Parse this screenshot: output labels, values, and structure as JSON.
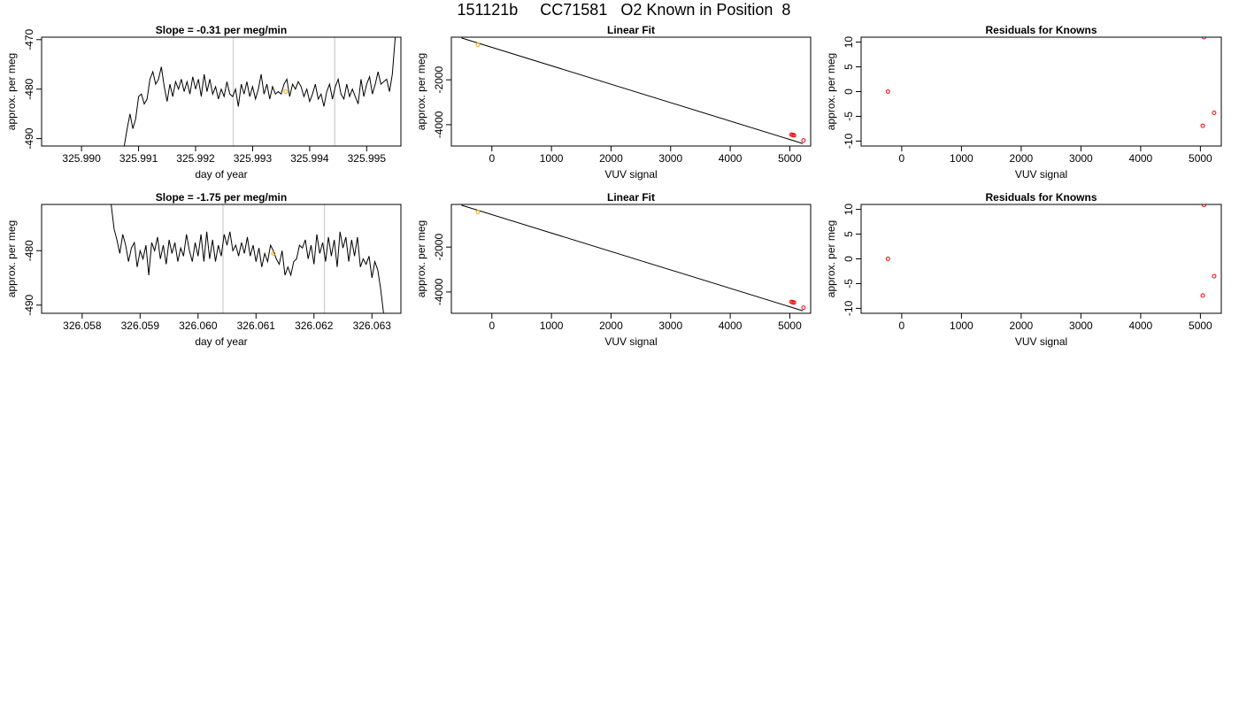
{
  "page": {
    "title": "151121b     CC71581   O2 Known in Position  8"
  },
  "chart_data": [
    {
      "type": "line",
      "title": "Slope =  -0.31  per meg/min",
      "xlabel": "day of year",
      "ylabel": "approx. per meg",
      "xlim": [
        325.9893,
        325.9956
      ],
      "ylim": [
        -491.5,
        -469.5
      ],
      "xticks": [
        "325.990",
        "325.991",
        "325.992",
        "325.993",
        "325.994",
        "325.995"
      ],
      "xtick_values": [
        325.99,
        325.991,
        325.992,
        325.993,
        325.994,
        325.995
      ],
      "yticks": [
        "-490",
        "-480",
        "-470"
      ],
      "ytick_values": [
        -490,
        -480,
        -470
      ],
      "line_color": "#000000",
      "vlines": [
        325.99266,
        325.99444
      ],
      "vline_color": "#cccccc",
      "marker": {
        "x": 325.99358,
        "y": -480.5,
        "color": "#ffa500"
      },
      "x": [
        325.99075,
        325.9908,
        325.99085,
        325.9909,
        325.99095,
        325.991,
        325.99105,
        325.9911,
        325.99115,
        325.9912,
        325.99125,
        325.9913,
        325.99135,
        325.9914,
        325.99145,
        325.9915,
        325.99155,
        325.9916,
        325.99165,
        325.9917,
        325.99175,
        325.9918,
        325.99185,
        325.9919,
        325.99195,
        325.992,
        325.99205,
        325.9921,
        325.99215,
        325.9922,
        325.99225,
        325.9923,
        325.99235,
        325.9924,
        325.99245,
        325.9925,
        325.99255,
        325.9926,
        325.99265,
        325.9927,
        325.99275,
        325.9928,
        325.99285,
        325.9929,
        325.99295,
        325.993,
        325.99305,
        325.9931,
        325.99315,
        325.9932,
        325.99325,
        325.9933,
        325.99335,
        325.9934,
        325.99345,
        325.9935,
        325.99355,
        325.9936,
        325.99365,
        325.9937,
        325.99375,
        325.9938,
        325.99385,
        325.9939,
        325.99395,
        325.994,
        325.99405,
        325.9941,
        325.99415,
        325.9942,
        325.99425,
        325.9943,
        325.99435,
        325.9944,
        325.99445,
        325.9945,
        325.99455,
        325.9946,
        325.99465,
        325.9947,
        325.99475,
        325.9948,
        325.99485,
        325.9949,
        325.99495,
        325.995,
        325.99505,
        325.9951,
        325.99515,
        325.9952,
        325.99525,
        325.9953,
        325.99535,
        325.9954,
        325.99545,
        325.9955
      ],
      "y": [
        -491.5,
        -488.0,
        -485.0,
        -488.0,
        -486.0,
        -481.5,
        -481.0,
        -483.0,
        -482.0,
        -478.0,
        -476.5,
        -479.0,
        -478.0,
        -475.5,
        -479.5,
        -482.5,
        -479.0,
        -481.5,
        -478.5,
        -480.0,
        -478.0,
        -480.5,
        -478.5,
        -481.0,
        -477.5,
        -480.0,
        -478.0,
        -481.5,
        -477.0,
        -480.5,
        -478.0,
        -481.0,
        -479.5,
        -482.0,
        -480.0,
        -481.5,
        -478.5,
        -481.0,
        -481.5,
        -480.0,
        -483.5,
        -479.0,
        -481.0,
        -478.5,
        -481.5,
        -479.5,
        -482.0,
        -480.0,
        -477.0,
        -481.0,
        -479.0,
        -482.0,
        -479.5,
        -481.0,
        -480.5,
        -481.0,
        -479.0,
        -478.0,
        -481.5,
        -479.0,
        -480.0,
        -478.5,
        -479.5,
        -481.5,
        -480.0,
        -482.5,
        -481.0,
        -479.0,
        -482.0,
        -481.0,
        -483.5,
        -480.5,
        -479.0,
        -482.0,
        -479.5,
        -478.0,
        -481.0,
        -482.0,
        -479.0,
        -481.5,
        -480.0,
        -481.5,
        -483.0,
        -478.0,
        -481.5,
        -479.0,
        -477.5,
        -481.0,
        -479.0,
        -476.5,
        -479.0,
        -478.5,
        -478.0,
        -480.5,
        -477.0,
        -469.5
      ]
    },
    {
      "type": "scatter",
      "title": "Linear Fit",
      "xlabel": "VUV signal",
      "ylabel": "approx. per meg",
      "xlim": [
        -680,
        5350
      ],
      "ylim": [
        -4950,
        -100
      ],
      "xticks": [
        "0",
        "1000",
        "2000",
        "3000",
        "4000",
        "5000"
      ],
      "xtick_values": [
        0,
        1000,
        2000,
        3000,
        4000,
        5000
      ],
      "yticks": [
        "-4000",
        "-2000"
      ],
      "ytick_values": [
        -4000,
        -2000
      ],
      "fit_line": {
        "x": [
          -510,
          5220
        ],
        "y": [
          -135,
          -4840
        ],
        "color": "#000000"
      },
      "points": [
        {
          "x": -235,
          "y": -440,
          "color": "#ffa500"
        },
        {
          "x": 5030,
          "y": -4440,
          "color": "#ff0000"
        },
        {
          "x": 5050,
          "y": -4460,
          "color": "#ff0000"
        },
        {
          "x": 5070,
          "y": -4470,
          "color": "#ff0000"
        },
        {
          "x": 5230,
          "y": -4700,
          "color": "#ff0000"
        }
      ]
    },
    {
      "type": "scatter",
      "title": "Residuals for Knowns",
      "xlabel": "VUV signal",
      "ylabel": "approx. per meg",
      "xlim": [
        -680,
        5350
      ],
      "ylim": [
        -11,
        11
      ],
      "xticks": [
        "0",
        "1000",
        "2000",
        "3000",
        "4000",
        "5000"
      ],
      "xtick_values": [
        0,
        1000,
        2000,
        3000,
        4000,
        5000
      ],
      "yticks": [
        "-10",
        "-5",
        "0",
        "5",
        "10"
      ],
      "ytick_values": [
        -10,
        -5,
        0,
        5,
        10
      ],
      "points": [
        {
          "x": -230,
          "y": 0.0,
          "color": "#ff0000"
        },
        {
          "x": 5040,
          "y": -6.9,
          "color": "#ff0000"
        },
        {
          "x": 5060,
          "y": 11.0,
          "color": "#ff0000"
        },
        {
          "x": 5230,
          "y": -4.3,
          "color": "#ff0000"
        }
      ]
    },
    {
      "type": "line",
      "title": "Slope =  -1.75  per meg/min",
      "xlabel": "day of year",
      "ylabel": "approx. per meg",
      "xlim": [
        326.0573,
        326.0635
      ],
      "ylim": [
        -491.5,
        -471.5
      ],
      "xticks": [
        "326.058",
        "326.059",
        "326.060",
        "326.061",
        "326.062",
        "326.063"
      ],
      "xtick_values": [
        326.058,
        326.059,
        326.06,
        326.061,
        326.062,
        326.063
      ],
      "yticks": [
        "-490",
        "-480"
      ],
      "ytick_values": [
        -490,
        -480
      ],
      "line_color": "#000000",
      "vlines": [
        326.06043,
        326.06218
      ],
      "vline_color": "#cccccc",
      "marker": {
        "x": 326.0613,
        "y": -480.5,
        "color": "#ffa500"
      },
      "x": [
        326.0585,
        326.05855,
        326.0586,
        326.05865,
        326.0587,
        326.05875,
        326.0588,
        326.05885,
        326.0589,
        326.05895,
        326.059,
        326.05905,
        326.0591,
        326.05915,
        326.0592,
        326.05925,
        326.0593,
        326.05935,
        326.0594,
        326.05945,
        326.0595,
        326.05955,
        326.0596,
        326.05965,
        326.0597,
        326.05975,
        326.0598,
        326.05985,
        326.0599,
        326.05995,
        326.06,
        326.06005,
        326.0601,
        326.06015,
        326.0602,
        326.06025,
        326.0603,
        326.06035,
        326.0604,
        326.06045,
        326.0605,
        326.06055,
        326.0606,
        326.06065,
        326.0607,
        326.06075,
        326.0608,
        326.06085,
        326.0609,
        326.06095,
        326.061,
        326.06105,
        326.0611,
        326.06115,
        326.0612,
        326.06125,
        326.0613,
        326.06135,
        326.0614,
        326.06145,
        326.0615,
        326.06155,
        326.0616,
        326.06165,
        326.0617,
        326.06175,
        326.0618,
        326.06185,
        326.0619,
        326.06195,
        326.062,
        326.06205,
        326.0621,
        326.06215,
        326.0622,
        326.06225,
        326.0623,
        326.06235,
        326.0624,
        326.06245,
        326.0625,
        326.06255,
        326.0626,
        326.06265,
        326.0627,
        326.06275,
        326.0628,
        326.06285,
        326.0629,
        326.06295,
        326.063,
        326.06305,
        326.0631,
        326.06315,
        326.0632
      ],
      "y": [
        -471.5,
        -476.0,
        -478.0,
        -480.5,
        -477.0,
        -479.0,
        -482.0,
        -479.5,
        -478.5,
        -483.0,
        -480.0,
        -481.5,
        -479.0,
        -484.5,
        -478.5,
        -480.0,
        -477.5,
        -481.5,
        -479.0,
        -482.5,
        -478.0,
        -480.5,
        -478.5,
        -482.0,
        -479.5,
        -481.0,
        -477.0,
        -480.0,
        -482.0,
        -478.5,
        -481.0,
        -477.0,
        -482.0,
        -476.5,
        -481.5,
        -478.0,
        -482.0,
        -479.0,
        -481.0,
        -477.0,
        -479.0,
        -476.5,
        -480.0,
        -479.0,
        -481.0,
        -478.5,
        -480.5,
        -477.5,
        -481.0,
        -479.0,
        -482.0,
        -479.5,
        -483.0,
        -480.5,
        -482.0,
        -479.0,
        -480.0,
        -481.5,
        -482.5,
        -480.0,
        -484.5,
        -483.0,
        -484.5,
        -482.0,
        -481.5,
        -479.0,
        -479.5,
        -478.0,
        -481.5,
        -479.0,
        -482.5,
        -477.0,
        -480.5,
        -478.5,
        -482.0,
        -477.5,
        -481.0,
        -478.0,
        -483.0,
        -476.5,
        -479.5,
        -477.5,
        -482.0,
        -478.0,
        -481.0,
        -477.5,
        -483.0,
        -481.5,
        -482.5,
        -481.0,
        -485.0,
        -482.0,
        -483.5,
        -487.0,
        -491.5
      ]
    },
    {
      "type": "scatter",
      "title": "Linear Fit",
      "xlabel": "VUV signal",
      "ylabel": "approx. per meg",
      "xlim": [
        -680,
        5350
      ],
      "ylim": [
        -4950,
        -100
      ],
      "xticks": [
        "0",
        "1000",
        "2000",
        "3000",
        "4000",
        "5000"
      ],
      "xtick_values": [
        0,
        1000,
        2000,
        3000,
        4000,
        5000
      ],
      "yticks": [
        "-4000",
        "-2000"
      ],
      "ytick_values": [
        -4000,
        -2000
      ],
      "fit_line": {
        "x": [
          -510,
          5220
        ],
        "y": [
          -135,
          -4840
        ],
        "color": "#000000"
      },
      "points": [
        {
          "x": -235,
          "y": -440,
          "color": "#ffa500"
        },
        {
          "x": 5030,
          "y": -4440,
          "color": "#ff0000"
        },
        {
          "x": 5050,
          "y": -4460,
          "color": "#ff0000"
        },
        {
          "x": 5070,
          "y": -4470,
          "color": "#ff0000"
        },
        {
          "x": 5230,
          "y": -4700,
          "color": "#ff0000"
        }
      ]
    },
    {
      "type": "scatter",
      "title": "Residuals for Knowns",
      "xlabel": "VUV signal",
      "ylabel": "approx. per meg",
      "xlim": [
        -680,
        5350
      ],
      "ylim": [
        -11,
        11
      ],
      "xticks": [
        "0",
        "1000",
        "2000",
        "3000",
        "4000",
        "5000"
      ],
      "xtick_values": [
        0,
        1000,
        2000,
        3000,
        4000,
        5000
      ],
      "yticks": [
        "-10",
        "-5",
        "0",
        "5",
        "10"
      ],
      "ytick_values": [
        -10,
        -5,
        0,
        5,
        10
      ],
      "points": [
        {
          "x": -230,
          "y": 0.0,
          "color": "#ff0000"
        },
        {
          "x": 5040,
          "y": -7.4,
          "color": "#ff0000"
        },
        {
          "x": 5060,
          "y": 10.9,
          "color": "#ff0000"
        },
        {
          "x": 5230,
          "y": -3.5,
          "color": "#ff0000"
        }
      ]
    }
  ]
}
